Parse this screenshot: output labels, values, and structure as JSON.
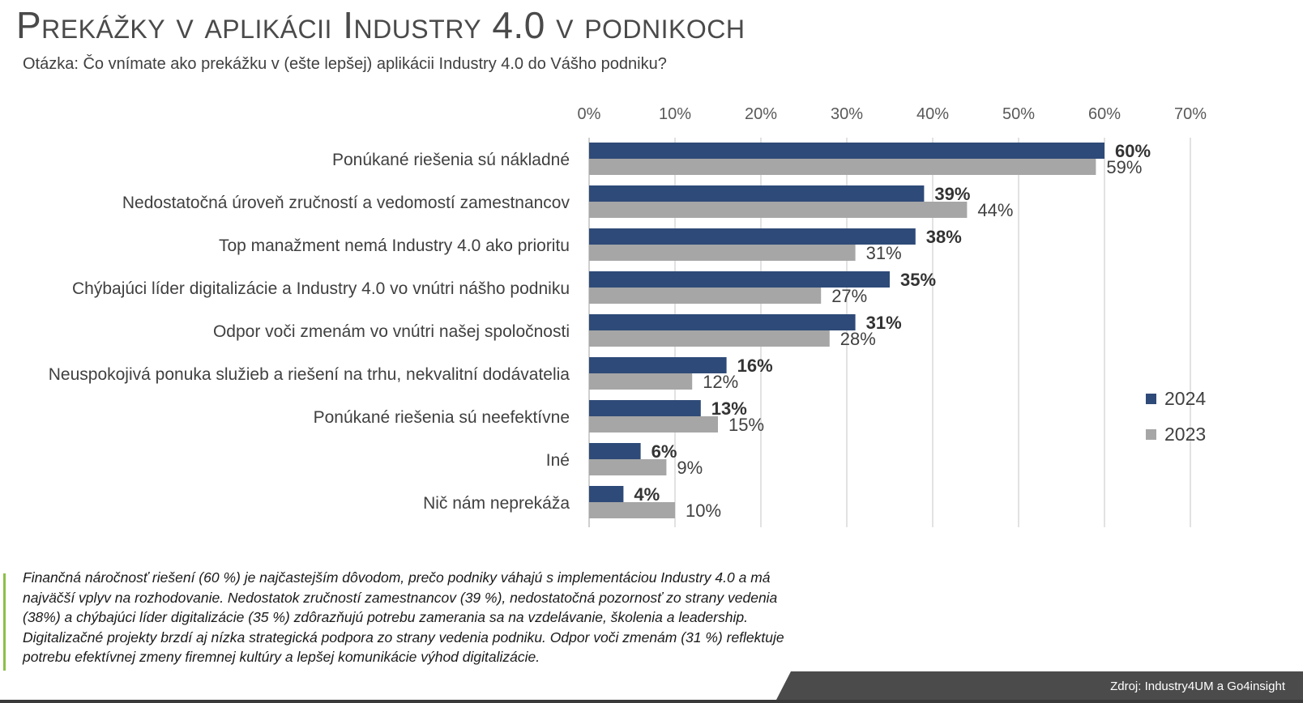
{
  "title": "Prekážky v aplikácii Industry 4.0 v podnikoch",
  "subtitle": "Otázka: Čo vnímate ako prekážku v (ešte lepšej) aplikácii Industry 4.0 do Vášho podniku?",
  "colors": {
    "series_2024": "#2e4a78",
    "series_2023": "#a6a6a6",
    "gridline": "#d9d9d9",
    "text": "#404040",
    "note_accent": "#8cc04a",
    "footer": "#4b4b4b"
  },
  "chart_data": {
    "type": "bar",
    "orientation": "horizontal",
    "categories": [
      "Ponúkané riešenia sú nákladné",
      "Nedostatočná úroveň zručností a vedomostí zamestnancov",
      "Top manažment nemá Industry 4.0 ako prioritu",
      "Chýbajúci líder digitalizácie a Industry 4.0 vo vnútri nášho podniku",
      "Odpor voči zmenám vo vnútri našej spoločnosti",
      "Neuspokojivá ponuka služieb a riešení na trhu, nekvalitní dodávatelia",
      "Ponúkané riešenia sú neefektívne",
      "Iné",
      "Nič nám neprekáža"
    ],
    "series": [
      {
        "name": "2024",
        "values": [
          60,
          39,
          38,
          35,
          31,
          16,
          13,
          6,
          4
        ],
        "labels": [
          "60%",
          "39%",
          "38%",
          "35%",
          "31%",
          "16%",
          "13%",
          "6%",
          "4%"
        ],
        "label_bold": true
      },
      {
        "name": "2023",
        "values": [
          59,
          44,
          31,
          27,
          28,
          12,
          15,
          9,
          10
        ],
        "labels": [
          "59%",
          "44%",
          "31%",
          "27%",
          "28%",
          "12%",
          "15%",
          "9%",
          "10%"
        ],
        "label_bold": false
      }
    ],
    "xlim": [
      0,
      70
    ],
    "x_ticks": [
      "0%",
      "10%",
      "20%",
      "30%",
      "40%",
      "50%",
      "60%",
      "70%"
    ],
    "x_axis_position": "top",
    "grid": true,
    "legend_position": "right"
  },
  "note": "Finančná náročnosť riešení (60 %) je najčastejším dôvodom, prečo podniky váhajú s implementáciou Industry 4.0 a má najväčší vplyv na rozhodovanie. Nedostatok zručností zamestnancov  (39 %), nedostatočná pozornosť zo strany vedenia (38%) a chýbajúci líder digitalizácie (35 %) zdôrazňujú potrebu zamerania sa na vzdelávanie, školenia a leadership. Digitalizačné projekty brzdí aj nízka strategická podpora zo strany vedenia podniku. Odpor voči zmenám (31 %) reflektuje potrebu efektívnej zmeny firemnej kultúry a lepšej komunikácie výhod digitalizácie.",
  "source": "Zdroj: Industry4UM a Go4insight"
}
